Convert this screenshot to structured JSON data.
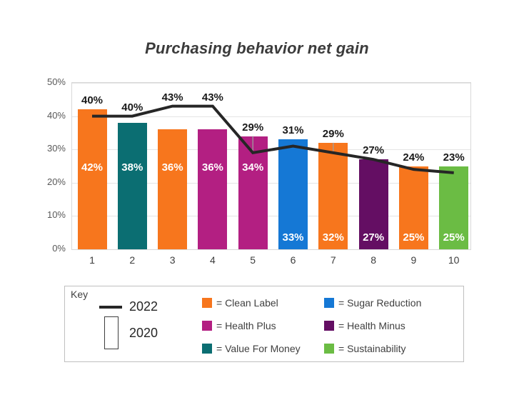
{
  "chart_data": {
    "type": "combo (bar + line)",
    "title": "Purchasing behavior net gain",
    "categories": [
      "1",
      "2",
      "3",
      "4",
      "5",
      "6",
      "7",
      "8",
      "9",
      "10"
    ],
    "ylim": [
      0,
      50
    ],
    "ytick_labels": [
      "0%",
      "10%",
      "20%",
      "30%",
      "40%",
      "50%"
    ],
    "grid": "horizontal gridlines every 10%",
    "legend_position": "bottom boxed key",
    "series": [
      {
        "name": "2020",
        "type": "bar",
        "values": [
          42,
          38,
          36,
          36,
          34,
          33,
          32,
          27,
          25,
          25
        ],
        "data_labels": [
          "42%",
          "38%",
          "36%",
          "36%",
          "34%",
          "33%",
          "32%",
          "27%",
          "25%",
          "25%"
        ],
        "data_label_color": "#ffffff",
        "segments": [
          "Clean Label",
          "Value For Money",
          "Clean Label",
          "Health Plus",
          "Health Plus",
          "Sugar Reduction",
          "Clean Label",
          "Health Minus",
          "Clean Label",
          "Sustainability"
        ]
      },
      {
        "name": "2022",
        "type": "line",
        "color": "#262626",
        "values": [
          40,
          40,
          43,
          43,
          29,
          31,
          29,
          27,
          24,
          23
        ],
        "data_labels": [
          "40%",
          "40%",
          "43%",
          "43%",
          "29%",
          "31%",
          "29%",
          "27%",
          "24%",
          "23%"
        ],
        "data_label_color": "#1a1a1a"
      }
    ],
    "colors": {
      "Clean Label": "#F7761D",
      "Sugar Reduction": "#1578D5",
      "Health Plus": "#B31F82",
      "Health Minus": "#640E63",
      "Value For Money": "#0B6E72",
      "Sustainability": "#6BBC44"
    }
  },
  "key": {
    "title": "Key",
    "line_entry": "2022",
    "bar_entry": "2020",
    "items": [
      {
        "label": "= Clean Label",
        "color": "#F7761D"
      },
      {
        "label": "= Health Plus",
        "color": "#B31F82"
      },
      {
        "label": "= Value For Money",
        "color": "#0B6E72"
      },
      {
        "label": "= Sugar Reduction",
        "color": "#1578D5"
      },
      {
        "label": "= Health Minus",
        "color": "#640E63"
      },
      {
        "label": "= Sustainability",
        "color": "#6BBC44"
      }
    ]
  }
}
